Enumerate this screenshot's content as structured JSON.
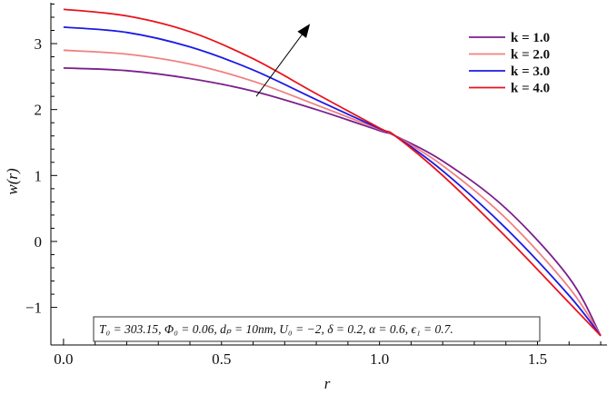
{
  "chart_data": {
    "type": "line",
    "xlabel": "r",
    "ylabel": "w(r)",
    "xlim": [
      -0.04,
      1.72
    ],
    "ylim": [
      -1.57,
      3.62
    ],
    "x_ticks": [
      0.0,
      0.5,
      1.0,
      1.5
    ],
    "x_tick_labels": [
      "0.0",
      "0.5",
      "1.0",
      "1.5"
    ],
    "y_ticks": [
      -1,
      0,
      1,
      2,
      3
    ],
    "y_tick_labels": [
      "−1",
      "0",
      "1",
      "2",
      "3"
    ],
    "legend_position": "top-right",
    "series": [
      {
        "name": "k = 1.0",
        "color": "#7b1f8c",
        "x": [
          0,
          0.2,
          0.4,
          0.6,
          0.8,
          1.0,
          1.05,
          1.2,
          1.4,
          1.6,
          1.7
        ],
        "y": [
          2.63,
          2.59,
          2.47,
          2.28,
          2.0,
          1.68,
          1.6,
          1.22,
          0.5,
          -0.55,
          -1.43
        ]
      },
      {
        "name": "k = 2.0",
        "color": "#f08080",
        "x": [
          0,
          0.2,
          0.4,
          0.6,
          0.8,
          1.0,
          1.05,
          1.2,
          1.4,
          1.6,
          1.7
        ],
        "y": [
          2.9,
          2.84,
          2.69,
          2.43,
          2.07,
          1.7,
          1.6,
          1.15,
          0.35,
          -0.7,
          -1.43
        ]
      },
      {
        "name": "k = 3.0",
        "color": "#1a1ae6",
        "x": [
          0,
          0.2,
          0.4,
          0.6,
          0.8,
          1.0,
          1.05,
          1.2,
          1.4,
          1.6,
          1.7
        ],
        "y": [
          3.25,
          3.17,
          2.95,
          2.6,
          2.15,
          1.71,
          1.6,
          1.07,
          0.2,
          -0.82,
          -1.43
        ]
      },
      {
        "name": "k = 4.0",
        "color": "#e8131b",
        "x": [
          0,
          0.2,
          0.4,
          0.6,
          0.8,
          1.0,
          1.05,
          1.2,
          1.4,
          1.6,
          1.7
        ],
        "y": [
          3.52,
          3.42,
          3.18,
          2.77,
          2.24,
          1.72,
          1.6,
          1.0,
          0.07,
          -0.93,
          -1.43
        ]
      }
    ],
    "arrow": {
      "from": [
        0.61,
        2.2
      ],
      "to": [
        0.78,
        3.3
      ]
    },
    "annotation": "T₀ = 303.15, Φ₀ = 0.06, dₚ = 10nm, U₀ = −2, δ = 0.2, α = 0.6, ϵ₁ = 0.7."
  }
}
